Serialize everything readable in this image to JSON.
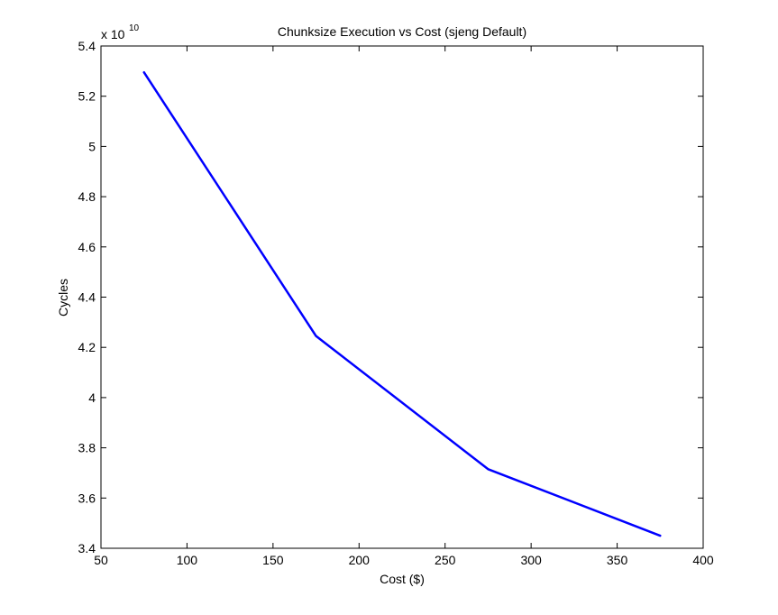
{
  "chart_data": {
    "type": "line",
    "title": "Chunksize Execution vs Cost (sjeng Default)",
    "xlabel": "Cost ($)",
    "ylabel": "Cycles",
    "y_multiplier_base": "x 10",
    "y_multiplier_exponent": "10",
    "xlim": [
      50,
      400
    ],
    "ylim": [
      3.4,
      5.4
    ],
    "x_ticks": [
      50,
      100,
      150,
      200,
      250,
      300,
      350,
      400
    ],
    "x_tick_labels": [
      "50",
      "100",
      "150",
      "200",
      "250",
      "300",
      "350",
      "400"
    ],
    "y_ticks": [
      3.4,
      3.6,
      3.8,
      4.0,
      4.2,
      4.4,
      4.6,
      4.8,
      5.0,
      5.2,
      5.4
    ],
    "y_tick_labels": [
      "3.4",
      "3.6",
      "3.8",
      "4",
      "4.2",
      "4.4",
      "4.6",
      "4.8",
      "5",
      "5.2",
      "5.4"
    ],
    "grid": false,
    "series": [
      {
        "color": "#0000ff",
        "x": [
          75,
          175,
          275,
          375
        ],
        "y": [
          5.295,
          4.245,
          3.715,
          3.45
        ]
      }
    ]
  }
}
